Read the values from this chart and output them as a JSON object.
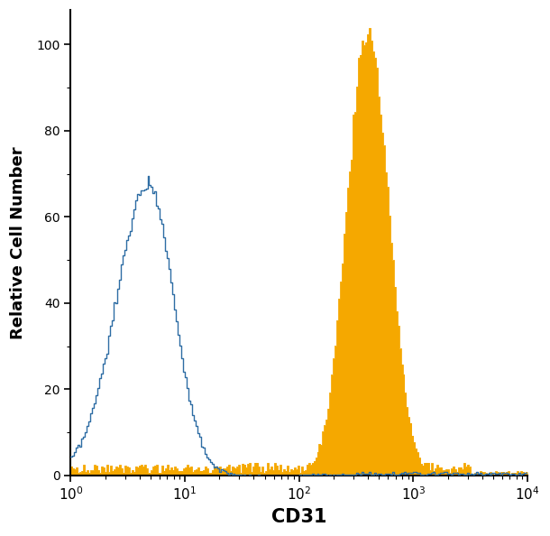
{
  "title": "",
  "xlabel": "CD31",
  "ylabel": "Relative Cell Number",
  "xlim_log": [
    0,
    4
  ],
  "ylim": [
    0,
    108
  ],
  "yticks": [
    0,
    20,
    40,
    60,
    80,
    100
  ],
  "xlabel_fontsize": 15,
  "ylabel_fontsize": 13,
  "tick_fontsize": 11,
  "control_color": "#2e6da4",
  "filled_color": "#f5a800",
  "background_color": "#ffffff",
  "control_peak_log": 0.68,
  "control_peak_height": 68,
  "control_log_std": 0.28,
  "filled_peak_log": 2.6,
  "filled_peak_height": 103,
  "filled_log_std": 0.18,
  "n_bins": 256
}
